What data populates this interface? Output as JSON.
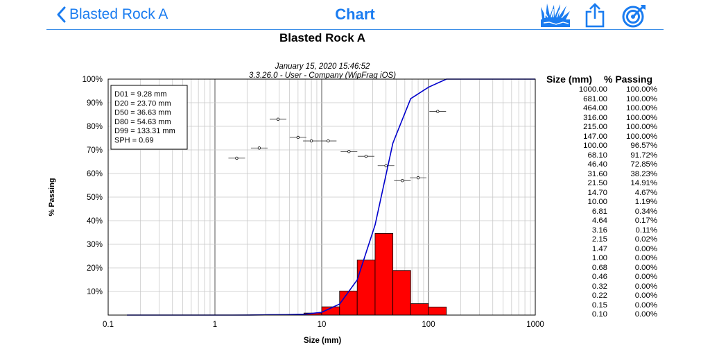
{
  "nav": {
    "back_label": "Blasted Rock A",
    "title": "Chart",
    "icons": [
      "blast-icon",
      "share-icon",
      "target-icon"
    ],
    "accent_color": "#1a7cf0"
  },
  "chart_data": {
    "type": "bar",
    "title": "Blasted Rock A",
    "subtitle_line1": "January 15, 2020 15:46:52",
    "subtitle_line2": "3.3.26.0  -  User - Company (WipFrag iOS)",
    "xlabel": "Size (mm)",
    "ylabel": "% Passing",
    "x_scale": "log",
    "xlim": [
      0.1,
      1000
    ],
    "ylim": [
      0,
      100
    ],
    "x_ticks": [
      "0.1",
      "1",
      "10",
      "100",
      "1000"
    ],
    "y_ticks": [
      "10%",
      "20%",
      "30%",
      "40%",
      "50%",
      "60%",
      "70%",
      "80%",
      "90%",
      "100%"
    ],
    "grid": true,
    "stats_box": [
      "D01 = 9.28 mm",
      "D20 = 23.70 mm",
      "D50 = 36.63 mm",
      "D80 = 54.63 mm",
      "D99 = 133.31 mm",
      "SPH = 0.69"
    ],
    "histogram": {
      "color": "#ff0000",
      "bins": [
        {
          "x0": 0.68,
          "x1": 1.0,
          "value": 0.0
        },
        {
          "x0": 1.0,
          "x1": 1.47,
          "value": 0.0
        },
        {
          "x0": 1.47,
          "x1": 2.15,
          "value": 0.02
        },
        {
          "x0": 2.15,
          "x1": 3.16,
          "value": 0.09
        },
        {
          "x0": 3.16,
          "x1": 4.64,
          "value": 0.06
        },
        {
          "x0": 4.64,
          "x1": 6.81,
          "value": 0.17
        },
        {
          "x0": 6.81,
          "x1": 10.0,
          "value": 0.85
        },
        {
          "x0": 10.0,
          "x1": 14.7,
          "value": 3.5
        },
        {
          "x0": 14.7,
          "x1": 21.5,
          "value": 10.2
        },
        {
          "x0": 21.5,
          "x1": 31.6,
          "value": 23.3
        },
        {
          "x0": 31.6,
          "x1": 46.4,
          "value": 34.6
        },
        {
          "x0": 46.4,
          "x1": 68.1,
          "value": 18.9
        },
        {
          "x0": 68.1,
          "x1": 100.0,
          "value": 4.85
        },
        {
          "x0": 100.0,
          "x1": 147.0,
          "value": 3.43
        }
      ]
    },
    "curve": {
      "color": "#0000cc",
      "x": [
        0.15,
        1.0,
        1.47,
        2.15,
        3.16,
        4.64,
        6.81,
        10.0,
        14.7,
        21.5,
        31.6,
        46.4,
        68.1,
        100.0,
        147.0,
        215.0,
        316.0,
        464.0,
        681.0,
        1000.0
      ],
      "y": [
        0.0,
        0.0,
        0.0,
        0.02,
        0.11,
        0.17,
        0.34,
        1.19,
        4.67,
        14.91,
        38.23,
        72.85,
        91.72,
        96.57,
        100.0,
        100.0,
        100.0,
        100.0,
        100.0,
        100.0
      ]
    },
    "points": [
      {
        "x": 1.6,
        "y": 66.5
      },
      {
        "x": 2.6,
        "y": 70.8
      },
      {
        "x": 3.9,
        "y": 83.0
      },
      {
        "x": 6.0,
        "y": 75.3
      },
      {
        "x": 8.0,
        "y": 73.8
      },
      {
        "x": 11.5,
        "y": 73.8
      },
      {
        "x": 18.0,
        "y": 69.3
      },
      {
        "x": 26.0,
        "y": 67.3
      },
      {
        "x": 40.0,
        "y": 63.3
      },
      {
        "x": 57.0,
        "y": 57.0
      },
      {
        "x": 80.0,
        "y": 58.2
      },
      {
        "x": 122.0,
        "y": 86.3
      }
    ],
    "table": {
      "headers": [
        "Size (mm)",
        "% Passing"
      ],
      "rows": [
        [
          "1000.00",
          "100.00%"
        ],
        [
          "681.00",
          "100.00%"
        ],
        [
          "464.00",
          "100.00%"
        ],
        [
          "316.00",
          "100.00%"
        ],
        [
          "215.00",
          "100.00%"
        ],
        [
          "147.00",
          "100.00%"
        ],
        [
          "100.00",
          "96.57%"
        ],
        [
          "68.10",
          "91.72%"
        ],
        [
          "46.40",
          "72.85%"
        ],
        [
          "31.60",
          "38.23%"
        ],
        [
          "21.50",
          "14.91%"
        ],
        [
          "14.70",
          "4.67%"
        ],
        [
          "10.00",
          "1.19%"
        ],
        [
          "6.81",
          "0.34%"
        ],
        [
          "4.64",
          "0.17%"
        ],
        [
          "3.16",
          "0.11%"
        ],
        [
          "2.15",
          "0.02%"
        ],
        [
          "1.47",
          "0.00%"
        ],
        [
          "1.00",
          "0.00%"
        ],
        [
          "0.68",
          "0.00%"
        ],
        [
          "0.46",
          "0.00%"
        ],
        [
          "0.32",
          "0.00%"
        ],
        [
          "0.22",
          "0.00%"
        ],
        [
          "0.15",
          "0.00%"
        ],
        [
          "0.10",
          "0.00%"
        ]
      ]
    }
  }
}
